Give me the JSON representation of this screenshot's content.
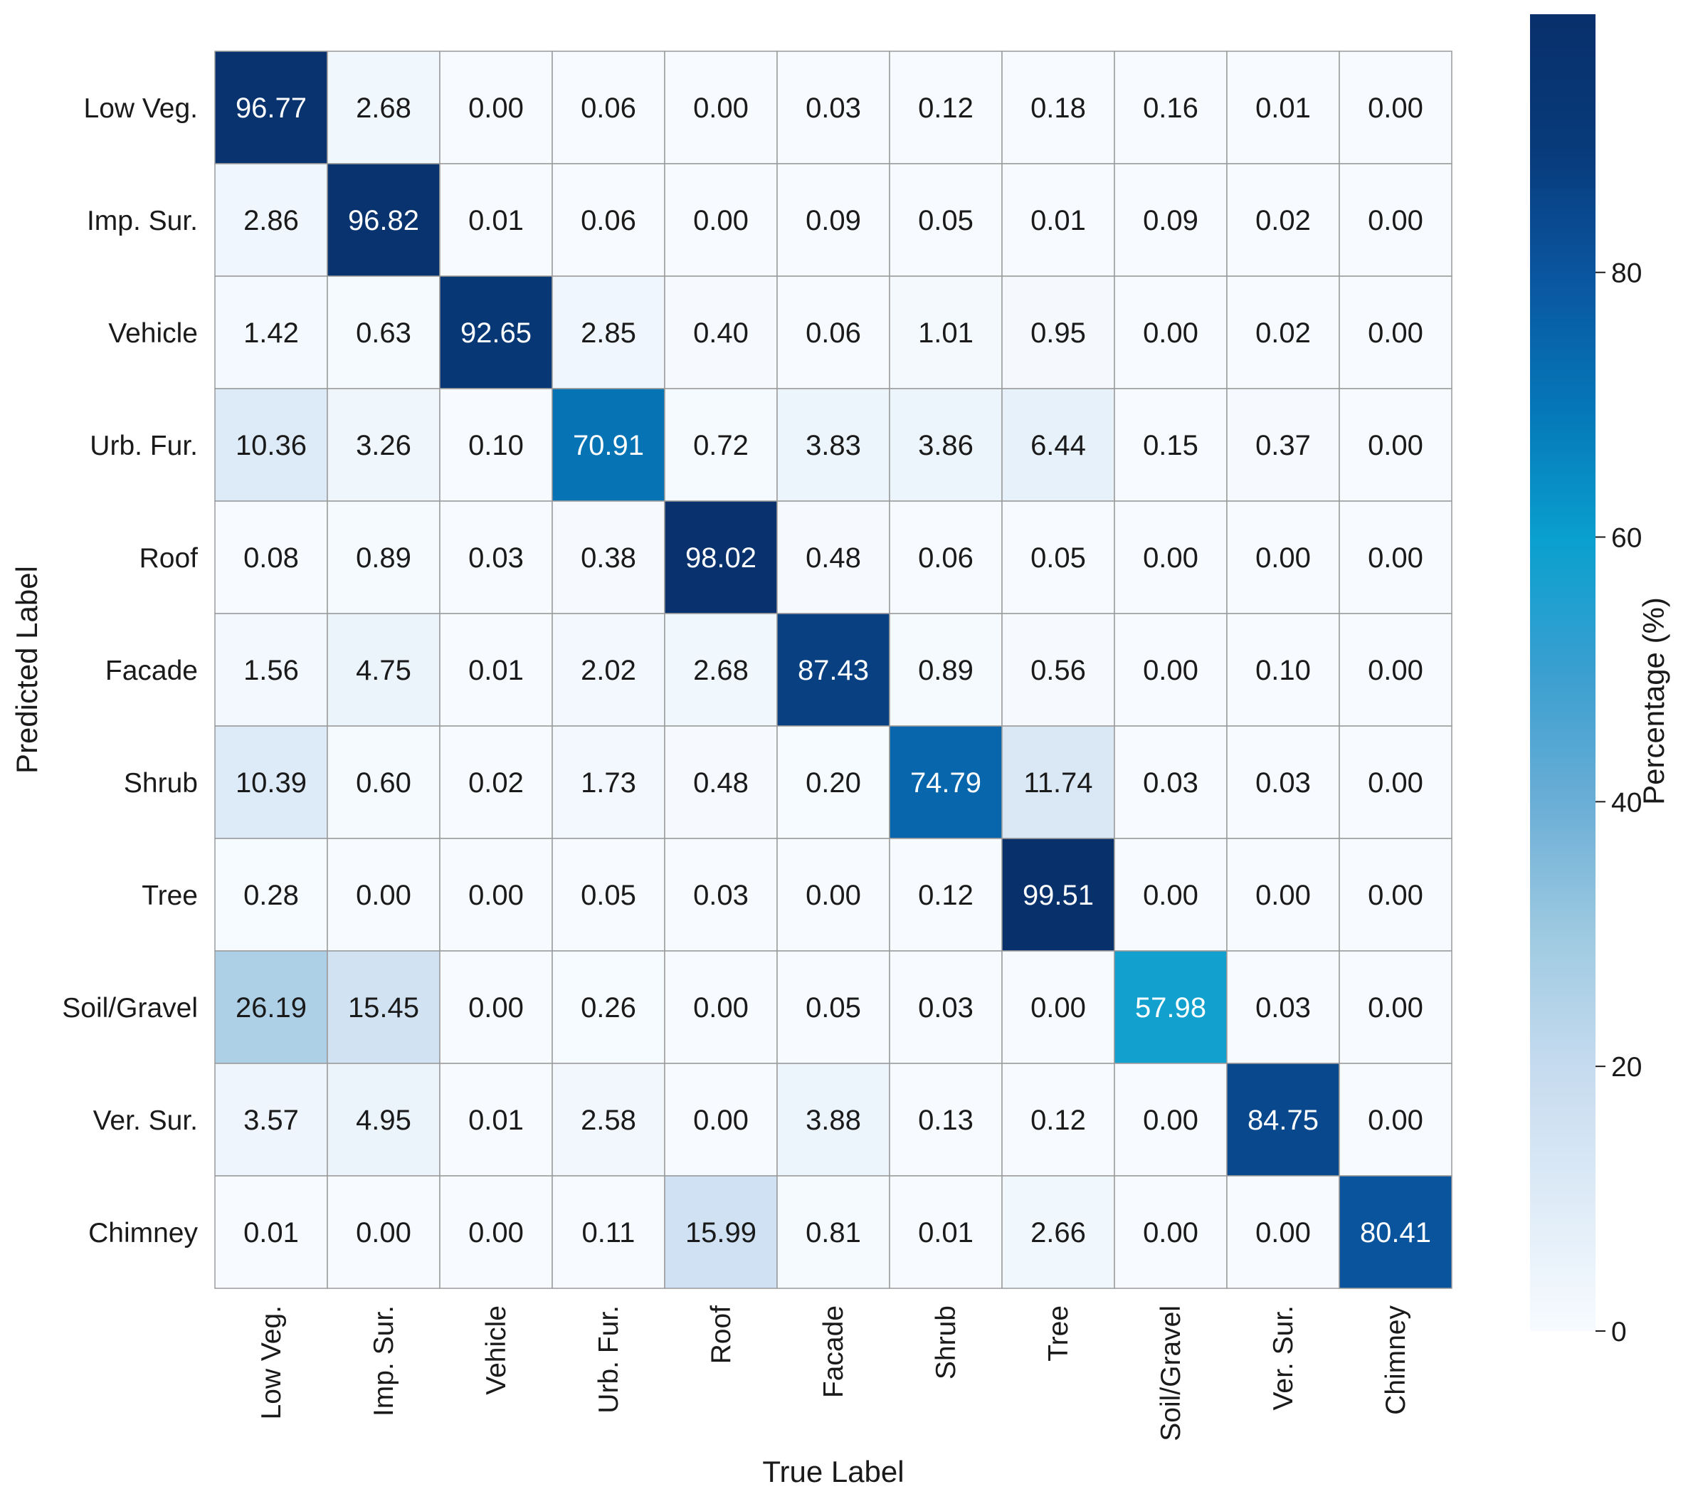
{
  "chart_data": {
    "type": "heatmap",
    "xlabel": "True Label",
    "ylabel": "Predicted Label",
    "x_categories": [
      "Low Veg.",
      "Imp. Sur.",
      "Vehicle",
      "Urb. Fur.",
      "Roof",
      "Facade",
      "Shrub",
      "Tree",
      "Soil/Gravel",
      "Ver. Sur.",
      "Chimney"
    ],
    "y_categories": [
      "Low Veg.",
      "Imp. Sur.",
      "Vehicle",
      "Urb. Fur.",
      "Roof",
      "Facade",
      "Shrub",
      "Tree",
      "Soil/Gravel",
      "Ver. Sur.",
      "Chimney"
    ],
    "values": [
      [
        "96.77",
        "2.68",
        "0.00",
        "0.06",
        "0.00",
        "0.03",
        "0.12",
        "0.18",
        "0.16",
        "0.01",
        "0.00"
      ],
      [
        "2.86",
        "96.82",
        "0.01",
        "0.06",
        "0.00",
        "0.09",
        "0.05",
        "0.01",
        "0.09",
        "0.02",
        "0.00"
      ],
      [
        "1.42",
        "0.63",
        "92.65",
        "2.85",
        "0.40",
        "0.06",
        "1.01",
        "0.95",
        "0.00",
        "0.02",
        "0.00"
      ],
      [
        "10.36",
        "3.26",
        "0.10",
        "70.91",
        "0.72",
        "3.83",
        "3.86",
        "6.44",
        "0.15",
        "0.37",
        "0.00"
      ],
      [
        "0.08",
        "0.89",
        "0.03",
        "0.38",
        "98.02",
        "0.48",
        "0.06",
        "0.05",
        "0.00",
        "0.00",
        "0.00"
      ],
      [
        "1.56",
        "4.75",
        "0.01",
        "2.02",
        "2.68",
        "87.43",
        "0.89",
        "0.56",
        "0.00",
        "0.10",
        "0.00"
      ],
      [
        "10.39",
        "0.60",
        "0.02",
        "1.73",
        "0.48",
        "0.20",
        "74.79",
        "11.74",
        "0.03",
        "0.03",
        "0.00"
      ],
      [
        "0.28",
        "0.00",
        "0.00",
        "0.05",
        "0.03",
        "0.00",
        "0.12",
        "99.51",
        "0.00",
        "0.00",
        "0.00"
      ],
      [
        "26.19",
        "15.45",
        "0.00",
        "0.26",
        "0.00",
        "0.05",
        "0.03",
        "0.00",
        "57.98",
        "0.03",
        "0.00"
      ],
      [
        "3.57",
        "4.95",
        "0.01",
        "2.58",
        "0.00",
        "3.88",
        "0.13",
        "0.12",
        "0.00",
        "84.75",
        "0.00"
      ],
      [
        "0.01",
        "0.00",
        "0.00",
        "0.11",
        "15.99",
        "0.81",
        "0.01",
        "2.66",
        "0.00",
        "0.00",
        "80.41"
      ]
    ],
    "colormap": "Blues",
    "colormap_stops": [
      "#f7fbff",
      "#deebf7",
      "#c6dbef",
      "#9ecae1",
      "#6baed6",
      "#3a9fd0",
      "#0aa0cf",
      "#0577b8",
      "#0a56a0",
      "#083a7a",
      "#08306b"
    ],
    "value_range": [
      0,
      99.51
    ],
    "colorbar": {
      "label": "Percentage (%)",
      "ticks": [
        "0",
        "20",
        "40",
        "60",
        "80"
      ],
      "tick_values": [
        0,
        20,
        40,
        60,
        80
      ],
      "placement": "right"
    },
    "cell_text_colors": {
      "light_bg": "#1a1a1a",
      "dark_bg": "#ffffff"
    },
    "grid": true
  }
}
